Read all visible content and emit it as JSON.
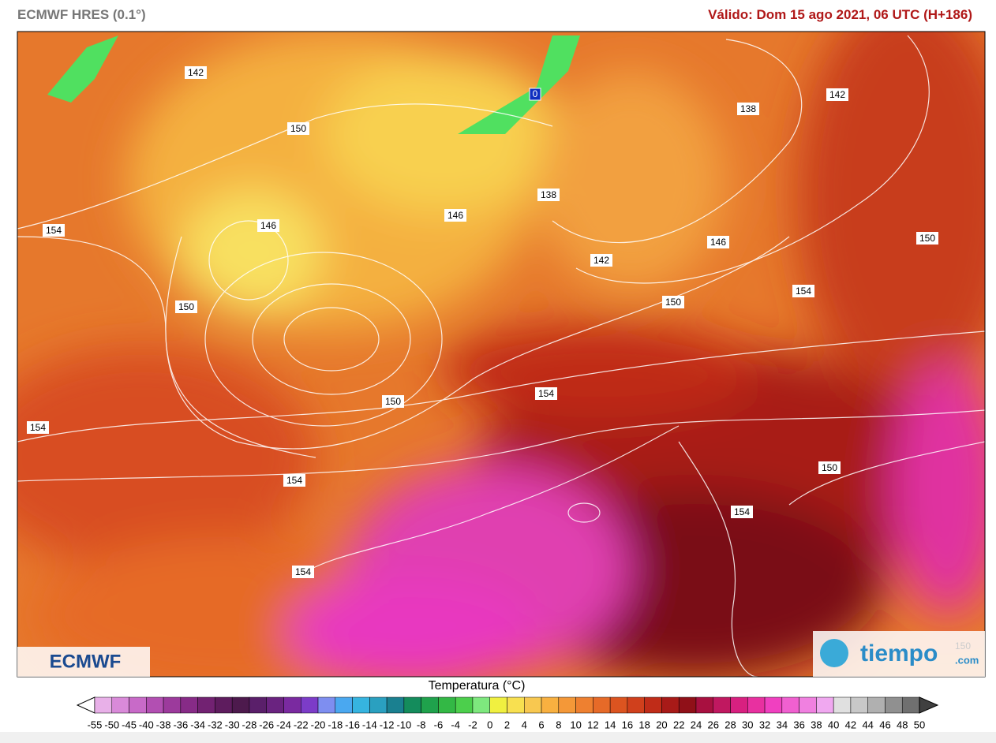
{
  "header": {
    "model": "ECMWF HRES (0.1°)",
    "valid": "Válido: Dom 15 ago 2021, 06 UTC (H+186)"
  },
  "map": {
    "contour_labels": [
      142,
      150,
      146,
      138,
      138,
      142,
      154,
      146,
      150,
      142,
      146,
      150,
      154,
      150,
      154,
      150,
      154,
      154,
      150,
      154,
      154
    ],
    "marker": "0",
    "corner_label": 150
  },
  "logos": {
    "ecmwf": "ECMWF",
    "tiempo": "tiempo",
    ".com": ".com"
  },
  "colorbar": {
    "title": "Temperatura (°C)",
    "ticks": [
      -55,
      -50,
      -45,
      -40,
      -38,
      -36,
      -34,
      -32,
      -30,
      -28,
      -26,
      -24,
      -22,
      -20,
      -18,
      -16,
      -14,
      -12,
      -10,
      -8,
      -6,
      -4,
      -2,
      0,
      2,
      4,
      6,
      8,
      10,
      12,
      14,
      16,
      18,
      20,
      22,
      24,
      26,
      28,
      30,
      32,
      34,
      36,
      38,
      40,
      42,
      44,
      46,
      48,
      50
    ],
    "colors": [
      "#e8b0e8",
      "#d98ad9",
      "#c86ac8",
      "#b24fb2",
      "#9c3a9c",
      "#872b87",
      "#722272",
      "#5e1c5e",
      "#4d1a4d",
      "#5a1f6a",
      "#6a2380",
      "#7a2aa0",
      "#7c3cc8",
      "#7e8ef0",
      "#4aa8f0",
      "#36b4e0",
      "#2aa0c0",
      "#1a8090",
      "#148c5c",
      "#1fa24c",
      "#33b845",
      "#4ccf4c",
      "#7ee87e",
      "#f0f040",
      "#f8e050",
      "#f8c850",
      "#f8b040",
      "#f49838",
      "#ee8030",
      "#e66a28",
      "#dc5420",
      "#d0401c",
      "#c02c18",
      "#a81a18",
      "#901018",
      "#a81040",
      "#c01860",
      "#d82080",
      "#e830a0",
      "#f040c0",
      "#f060d0",
      "#f080e0",
      "#f0a8f0",
      "#e0e0e0",
      "#c8c8c8",
      "#b0b0b0",
      "#909090",
      "#707070"
    ],
    "low_color": "#ffffff",
    "high_color": "#404040"
  }
}
